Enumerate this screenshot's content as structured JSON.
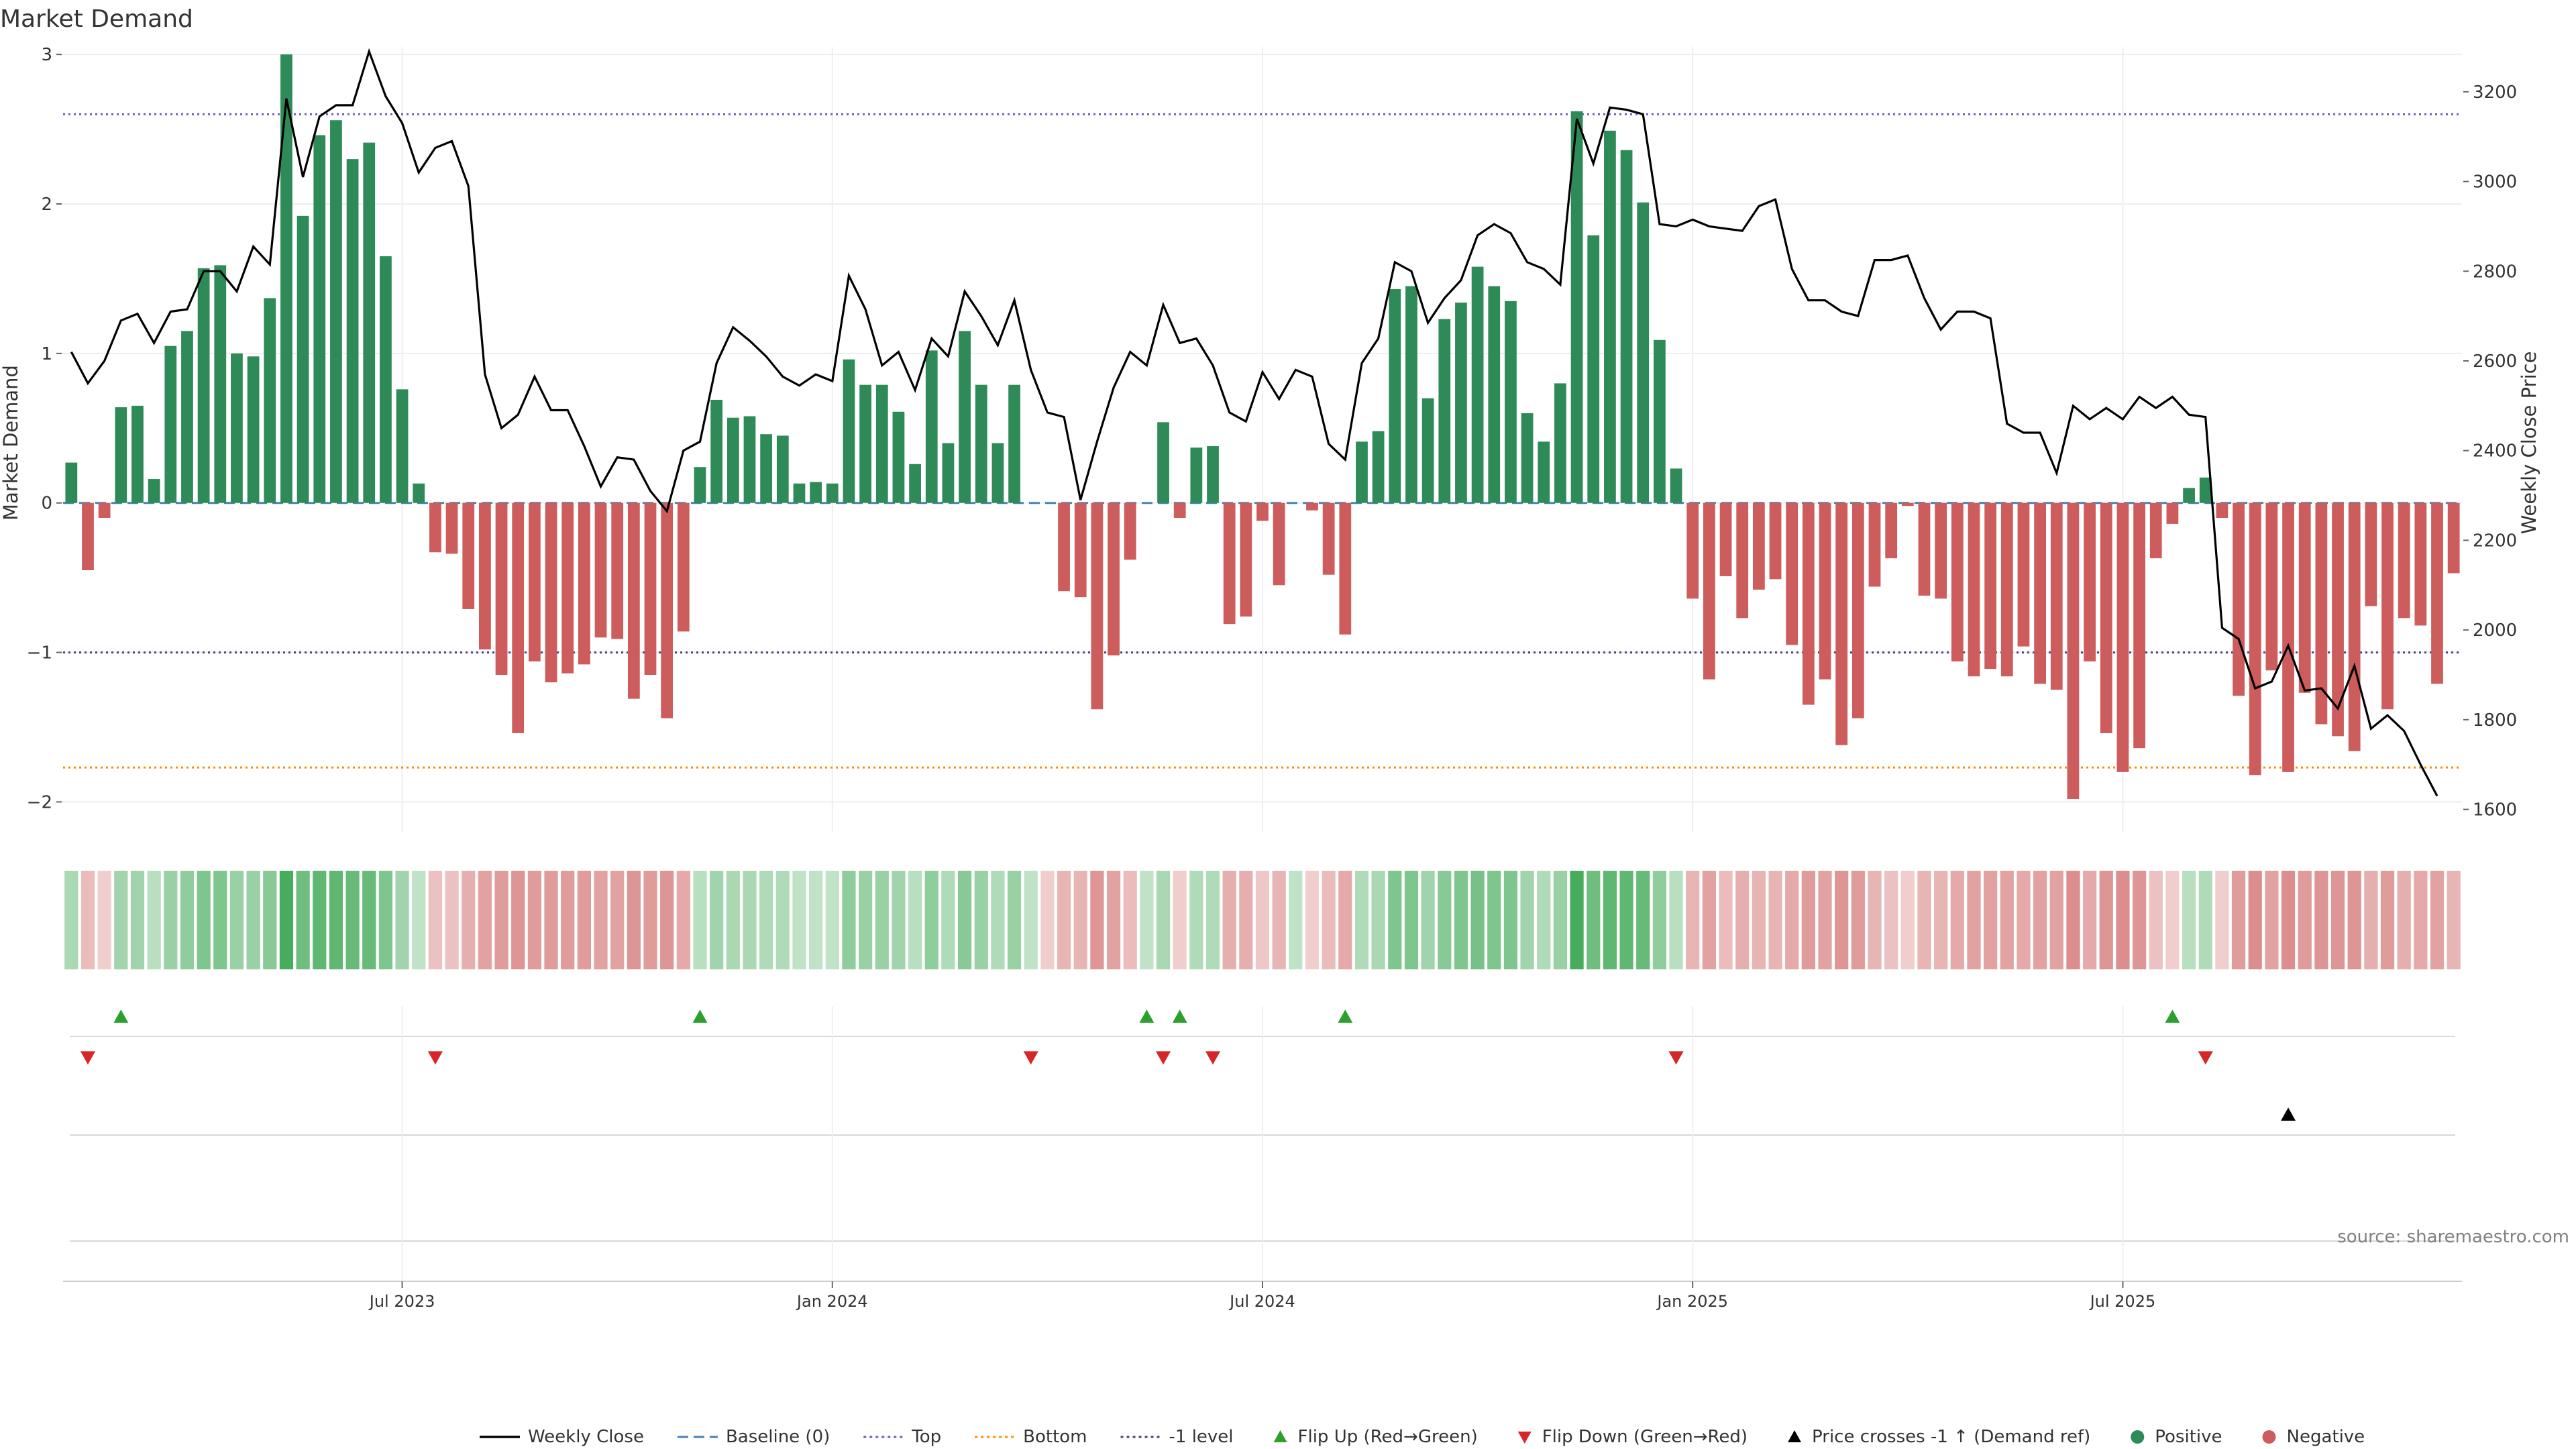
{
  "title": "Market Demand",
  "source": "source: sharemaestro.com",
  "colors": {
    "positive": "#2e8b57",
    "negative": "#cd5c5c",
    "price": "#000000",
    "baseline": "#4682b4",
    "top": "#6a5acd",
    "bottom": "#ff8c00",
    "minus1": "#483d8b",
    "flip_up": "#2ca02c",
    "flip_down": "#d62728",
    "cross": "#000000",
    "grid": "#eeeeee"
  },
  "chart_data": {
    "type": "bar",
    "ylabel": "Market Demand",
    "y2label": "Weekly Close Price",
    "ylim": [
      -2.2,
      3.05
    ],
    "y2lim": [
      1550,
      3300
    ],
    "yticks": [
      3,
      2,
      1,
      0,
      -1,
      -2
    ],
    "ytick_labels": [
      "3",
      "2",
      "1",
      "0",
      "−1",
      "−2"
    ],
    "y2ticks": [
      3200,
      3000,
      2800,
      2600,
      2400,
      2200,
      2000,
      1800,
      1600
    ],
    "y2tick_labels": [
      "3200",
      "3000",
      "2800",
      "2600",
      "2400",
      "2200",
      "2000",
      "1800",
      "1600"
    ],
    "xticks": [
      {
        "label": "Jul 2023",
        "week": 20
      },
      {
        "label": "Jan 2024",
        "week": 46
      },
      {
        "label": "Jul 2024",
        "week": 72
      },
      {
        "label": "Jan 2025",
        "week": 98
      },
      {
        "label": "Jul 2025",
        "week": 124
      }
    ],
    "levels": {
      "baseline": 0,
      "top": 2.6,
      "bottom": -1.77,
      "minus1": -1
    },
    "demand": [
      0.27,
      -0.45,
      -0.1,
      0.64,
      0.65,
      0.16,
      1.05,
      1.15,
      1.57,
      1.59,
      1.0,
      0.98,
      1.37,
      3.0,
      1.92,
      2.46,
      2.56,
      2.3,
      2.41,
      1.65,
      0.76,
      0.13,
      -0.33,
      -0.34,
      -0.71,
      -0.98,
      -1.15,
      -1.54,
      -1.06,
      -1.2,
      -1.14,
      -1.08,
      -0.9,
      -0.91,
      -1.31,
      -1.15,
      -1.44,
      -0.86,
      0.24,
      0.69,
      0.57,
      0.58,
      0.46,
      0.45,
      0.13,
      0.14,
      0.13,
      0.96,
      0.79,
      0.79,
      0.61,
      0.26,
      1.02,
      0.4,
      1.15,
      0.79,
      0.4,
      0.79,
      0.0,
      0.0,
      -0.59,
      -0.63,
      -1.38,
      -1.02,
      -0.38,
      0.0,
      0.54,
      -0.1,
      0.37,
      0.38,
      -0.81,
      -0.76,
      -0.12,
      -0.55,
      0.0,
      -0.05,
      -0.48,
      -0.88,
      0.41,
      0.48,
      1.43,
      1.45,
      0.7,
      1.23,
      1.34,
      1.58,
      1.45,
      1.35,
      0.6,
      0.41,
      0.8,
      2.62,
      1.79,
      2.49,
      2.36,
      2.01,
      1.09,
      0.23,
      -0.64,
      -1.18,
      -0.49,
      -0.77,
      -0.58,
      -0.51,
      -0.95,
      -1.35,
      -1.18,
      -1.62,
      -1.44,
      -0.56,
      -0.37,
      -0.02,
      -0.62,
      -0.64,
      -1.06,
      -1.16,
      -1.11,
      -1.16,
      -0.96,
      -1.21,
      -1.25,
      -1.98,
      -1.06,
      -1.54,
      -1.8,
      -1.64,
      -0.37,
      -0.14,
      0.1,
      0.17,
      -0.1,
      -1.29,
      -1.82,
      -1.12,
      -1.8,
      -1.27,
      -1.48,
      -1.56,
      -1.66,
      -0.69,
      -1.38,
      -0.77,
      -0.82,
      -1.21,
      -0.47
    ],
    "close": [
      2620,
      2550,
      2600,
      2690,
      2705,
      2640,
      2710,
      2715,
      2800,
      2800,
      2755,
      2855,
      2815,
      3185,
      3010,
      3145,
      3170,
      3170,
      3290,
      3190,
      3130,
      3020,
      3075,
      3090,
      2990,
      2570,
      2450,
      2480,
      2565,
      2490,
      2490,
      2410,
      2320,
      2385,
      2380,
      2310,
      2265,
      2400,
      2420,
      2595,
      2675,
      2645,
      2610,
      2565,
      2545,
      2570,
      2555,
      2790,
      2715,
      2590,
      2620,
      2535,
      2650,
      2610,
      2755,
      2700,
      2635,
      2735,
      2580,
      2485,
      2475,
      2290,
      2420,
      2540,
      2620,
      2590,
      2725,
      2640,
      2650,
      2590,
      2485,
      2465,
      2575,
      2515,
      2580,
      2565,
      2415,
      2380,
      2595,
      2650,
      2820,
      2800,
      2685,
      2740,
      2780,
      2880,
      2905,
      2885,
      2820,
      2805,
      2770,
      3140,
      3040,
      3165,
      3160,
      3150,
      2905,
      2900,
      2915,
      2900,
      2895,
      2890,
      2945,
      2960,
      2805,
      2735,
      2735,
      2710,
      2700,
      2825,
      2825,
      2835,
      2740,
      2670,
      2710,
      2710,
      2695,
      2460,
      2440,
      2440,
      2350,
      2500,
      2470,
      2495,
      2470,
      2520,
      2495,
      2520,
      2480,
      2475,
      2005,
      1980,
      1870,
      1885,
      1965,
      1865,
      1870,
      1825,
      1920,
      1780,
      1810,
      1775,
      1700,
      1630
    ],
    "heat": [
      0.3,
      -0.3,
      -0.15,
      0.35,
      0.35,
      0.2,
      0.4,
      0.45,
      0.55,
      0.55,
      0.4,
      0.4,
      0.5,
      0.9,
      0.65,
      0.75,
      0.75,
      0.7,
      0.7,
      0.55,
      0.35,
      0.15,
      -0.25,
      -0.25,
      -0.4,
      -0.5,
      -0.55,
      -0.6,
      -0.55,
      -0.55,
      -0.55,
      -0.55,
      -0.5,
      -0.5,
      -0.6,
      -0.55,
      -0.6,
      -0.45,
      0.2,
      0.35,
      0.3,
      0.3,
      0.25,
      0.25,
      0.15,
      0.15,
      0.15,
      0.45,
      0.4,
      0.4,
      0.35,
      0.2,
      0.45,
      0.25,
      0.5,
      0.4,
      0.25,
      0.4,
      0.15,
      -0.15,
      -0.35,
      -0.35,
      -0.6,
      -0.5,
      -0.3,
      0.15,
      0.3,
      -0.15,
      0.25,
      0.25,
      -0.4,
      -0.4,
      -0.2,
      -0.35,
      0.15,
      -0.15,
      -0.3,
      -0.45,
      0.25,
      0.3,
      0.55,
      0.55,
      0.35,
      0.5,
      0.55,
      0.6,
      0.55,
      0.55,
      0.35,
      0.25,
      0.4,
      0.9,
      0.65,
      0.75,
      0.75,
      0.7,
      0.45,
      0.2,
      -0.35,
      -0.5,
      -0.3,
      -0.4,
      -0.35,
      -0.35,
      -0.45,
      -0.55,
      -0.5,
      -0.6,
      -0.55,
      -0.35,
      -0.25,
      -0.15,
      -0.35,
      -0.35,
      -0.45,
      -0.5,
      -0.5,
      -0.5,
      -0.45,
      -0.5,
      -0.5,
      -0.65,
      -0.45,
      -0.6,
      -0.65,
      -0.6,
      -0.25,
      -0.15,
      0.2,
      0.25,
      -0.15,
      -0.55,
      -0.65,
      -0.5,
      -0.65,
      -0.55,
      -0.6,
      -0.6,
      -0.6,
      -0.4,
      -0.55,
      -0.4,
      -0.45,
      -0.5,
      -0.35
    ],
    "flip_up": [
      3,
      38,
      65,
      67,
      77,
      127
    ],
    "flip_down": [
      1,
      22,
      58,
      66,
      69,
      97,
      129
    ],
    "price_cross": [
      134
    ],
    "legend": [
      {
        "label": "Weekly Close",
        "kind": "line",
        "color": "price"
      },
      {
        "label": "Baseline (0)",
        "kind": "dash",
        "color": "baseline"
      },
      {
        "label": "Top",
        "kind": "dot",
        "color": "top"
      },
      {
        "label": "Bottom",
        "kind": "dot",
        "color": "bottom"
      },
      {
        "label": "-1 level",
        "kind": "dot",
        "color": "minus1"
      },
      {
        "label": "Flip Up (Red→Green)",
        "kind": "tri-up",
        "color": "flip_up"
      },
      {
        "label": "Flip Down (Green→Red)",
        "kind": "tri-down",
        "color": "flip_down"
      },
      {
        "label": "Price crosses -1 ↑ (Demand ref)",
        "kind": "tri-up",
        "color": "cross"
      },
      {
        "label": "Positive",
        "kind": "circle",
        "color": "positive"
      },
      {
        "label": "Negative",
        "kind": "circle",
        "color": "negative"
      }
    ]
  }
}
